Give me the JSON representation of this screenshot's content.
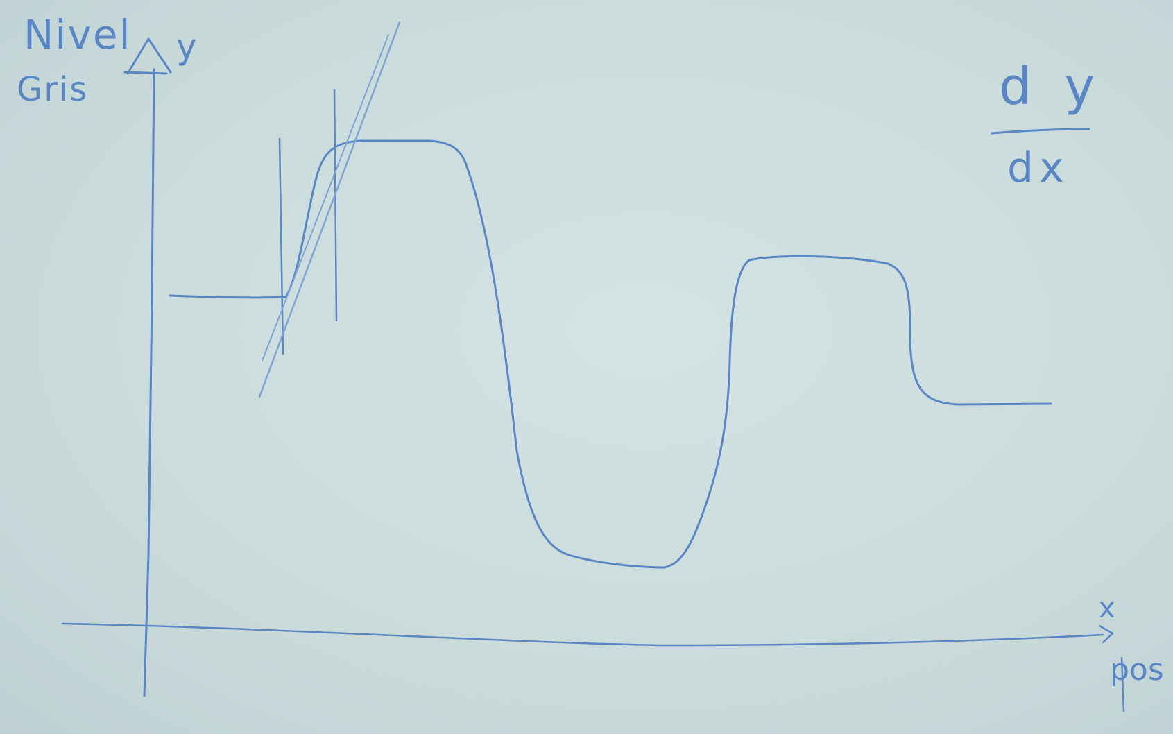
{
  "labels": {
    "y_title_line1": "Nivel",
    "y_title_line2": "Gris",
    "y_axis": "y",
    "x_axis": "x",
    "x_title": "pos",
    "deriv_num": "d y",
    "deriv_den": "dx"
  },
  "colors": {
    "board": "#c9dbdc",
    "ink": "#5b86c4",
    "ink_light": "#7fa3d2"
  }
}
